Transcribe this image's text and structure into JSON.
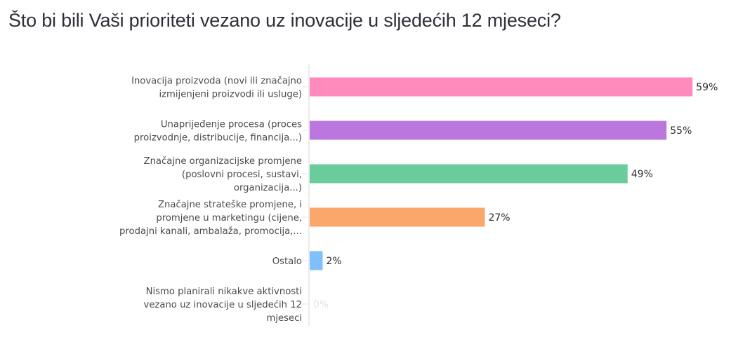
{
  "chart_data": {
    "type": "bar",
    "orientation": "horizontal",
    "title": "Što bi bili Vaši prioriteti vezano uz inovacije u sljedećih 12 mjeseci?",
    "xlabel": "",
    "ylabel": "",
    "xlim": [
      0,
      60
    ],
    "grid": false,
    "legend": "none",
    "categories": [
      [
        "Inovacija proizvoda (novi ili značajno",
        "izmijenjeni proizvodi ili usluge)"
      ],
      [
        "Unaprijeđenje procesa (proces",
        "proizvodnje, distribucije, financija...)"
      ],
      [
        "Značajne organizacijske promjene",
        "(poslovni procesi, sustavi,",
        "organizacija...)"
      ],
      [
        "Značajne strateške promjene, i",
        "promjene u marketingu (cijene,",
        "prodajni kanali, ambalaža, promocija,..."
      ],
      [
        "Ostalo"
      ],
      [
        "Nismo planirali nikakve aktivnosti",
        "vezano uz inovacije u sljedećih 12",
        "mjeseci"
      ]
    ],
    "values": [
      59,
      55,
      49,
      27,
      2,
      0
    ],
    "value_labels": [
      "59%",
      "55%",
      "49%",
      "27%",
      "2%",
      "0%"
    ],
    "colors": [
      "#ff8abb",
      "#bb77dd",
      "#6acb9d",
      "#fba66b",
      "#7fbffb",
      "#e0e0e0"
    ]
  }
}
